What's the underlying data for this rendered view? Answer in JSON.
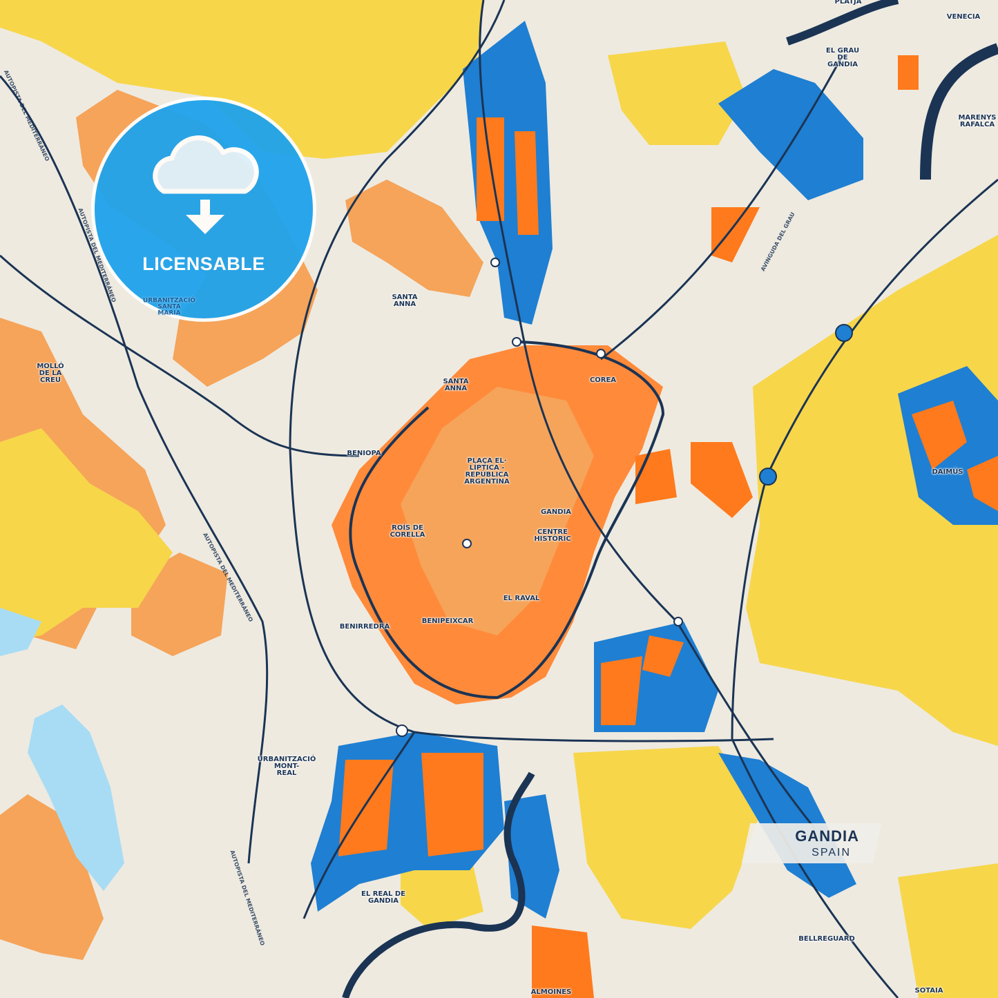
{
  "map": {
    "title": "GANDIA",
    "subtitle": "SPAIN",
    "badge": {
      "label": "LICENSABLE",
      "icon": "cloud-download-icon"
    },
    "colors": {
      "background": "#eeeae0",
      "yellow": "#f7d64a",
      "light_orange": "#f5a45a",
      "orange": "#ff7a1c",
      "blue": "#1f7fd2",
      "light_blue": "#a8dcf4",
      "roads": "#1b3454",
      "badge": "#1fa3ec"
    },
    "places": [
      {
        "id": "platja",
        "name": "PLATJA"
      },
      {
        "id": "venecia",
        "name": "VENECIA"
      },
      {
        "id": "el-grau",
        "name": "EL GRAU\nDE\nGANDIA"
      },
      {
        "id": "marenys",
        "name": "MARENYS\nRAFALCA"
      },
      {
        "id": "santa-anna-1",
        "name": "SANTA\nANNA"
      },
      {
        "id": "urb-santa-maria",
        "name": "URBANITZACIÓ\nSANTA\nMARIA"
      },
      {
        "id": "mollo",
        "name": "MOLLÓ\nDE LA\nCREU"
      },
      {
        "id": "santa-anna-2",
        "name": "SANTA\nANNA"
      },
      {
        "id": "corea",
        "name": "COREA"
      },
      {
        "id": "beniopa",
        "name": "BENIOPA"
      },
      {
        "id": "placa",
        "name": "PLAÇA EL·\nLÍPTICA -\nREPÚBLICA\nARGENTINA"
      },
      {
        "id": "daimus",
        "name": "DAIMÚS"
      },
      {
        "id": "gandia",
        "name": "GANDIA"
      },
      {
        "id": "centre",
        "name": "CENTRE\nHISTÒRIC"
      },
      {
        "id": "rois",
        "name": "ROÍS DE\nCORELLA"
      },
      {
        "id": "raval",
        "name": "EL RAVAL"
      },
      {
        "id": "benirreda",
        "name": "BENIRREDRÀ"
      },
      {
        "id": "benipeixcar",
        "name": "BENIPEIXCAR"
      },
      {
        "id": "montreal",
        "name": "URBANITZACIÓ\nMONT-\nREAL"
      },
      {
        "id": "real",
        "name": "EL REAL DE\nGANDIA"
      },
      {
        "id": "bellreguard",
        "name": "BELLREGUARD"
      },
      {
        "id": "almoines",
        "name": "ALMOINES"
      },
      {
        "id": "sotaia",
        "name": "SOTAIA"
      }
    ],
    "roads": [
      {
        "id": "ap7-a",
        "name": "AUTOPISTA DEL MEDITERRÁNEO"
      },
      {
        "id": "ap7-b",
        "name": "AUTOPISTA DEL MEDITERRÁNEO"
      },
      {
        "id": "ap7-c",
        "name": "AUTOPISTA DEL MEDITERRÁNEO"
      },
      {
        "id": "ap7-d",
        "name": "AUTOPISTA DEL MEDITERRÁNEO"
      },
      {
        "id": "grau",
        "name": "AVINGUDA DEL GRAU"
      }
    ]
  }
}
